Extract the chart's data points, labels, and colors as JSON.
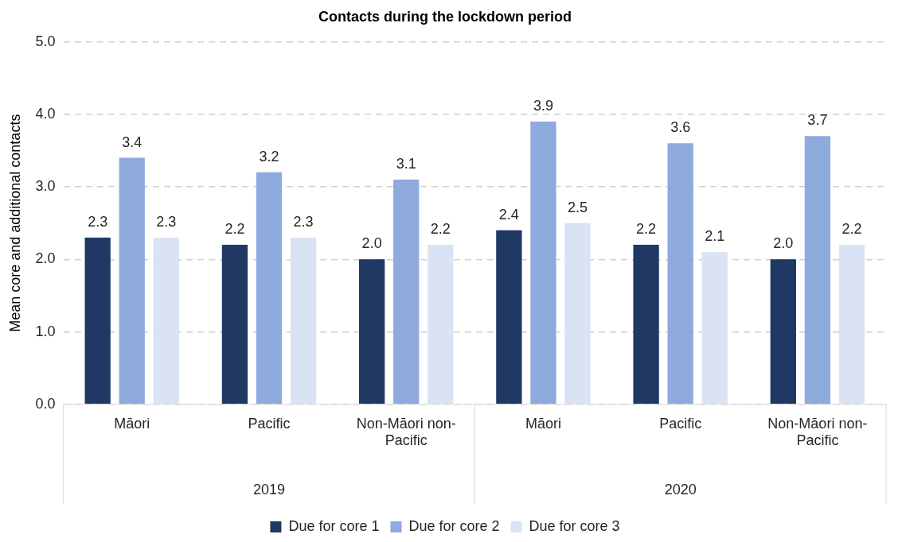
{
  "chart_data": {
    "type": "bar",
    "title": "Contacts during the lockdown period",
    "ylabel": "Mean core and additional contacts",
    "categories": [
      "Māori",
      "Pacific",
      "Non-Māori non-Pacific",
      "Māori",
      "Pacific",
      "Non-Māori non-Pacific"
    ],
    "annotations": [
      "2019",
      "2020"
    ],
    "series": [
      {
        "name": "Due for core 1",
        "color": "#1f3864",
        "values": [
          2.3,
          2.2,
          2.0,
          2.4,
          2.2,
          2.0
        ],
        "value_labels": [
          "2.3",
          "2.2",
          "2.0",
          "2.4",
          "2.2",
          "2.0"
        ]
      },
      {
        "name": "Due for core 2",
        "color": "#8faadc",
        "values": [
          3.4,
          3.2,
          3.1,
          3.9,
          3.6,
          3.7
        ],
        "value_labels": [
          "3.4",
          "3.2",
          "3.1",
          "3.9",
          "3.6",
          "3.7"
        ]
      },
      {
        "name": "Due for core 3",
        "color": "#dae3f3",
        "values": [
          2.3,
          2.3,
          2.2,
          2.5,
          2.1,
          2.2
        ],
        "value_labels": [
          "2.3",
          "2.3",
          "2.2",
          "2.5",
          "2.1",
          "2.2"
        ]
      }
    ],
    "ylim": [
      0,
      5
    ],
    "yticks": [
      {
        "value": 0,
        "label": "0.0"
      },
      {
        "value": 1,
        "label": "1.0"
      },
      {
        "value": 2,
        "label": "2.0"
      },
      {
        "value": 3,
        "label": "3.0"
      },
      {
        "value": 4,
        "label": "4.0"
      },
      {
        "value": 5,
        "label": "5.0"
      }
    ],
    "grid": "y",
    "legend": "bottom"
  }
}
